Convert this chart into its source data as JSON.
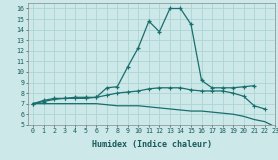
{
  "xlabel": "Humidex (Indice chaleur)",
  "ylabel": "",
  "bg_color": "#cce8e8",
  "grid_color": "#aed4d4",
  "line_color": "#1a6e6e",
  "xlim": [
    -0.5,
    23
  ],
  "ylim": [
    5,
    16.5
  ],
  "yticks": [
    5,
    6,
    7,
    8,
    9,
    10,
    11,
    12,
    13,
    14,
    15,
    16
  ],
  "xticks": [
    0,
    1,
    2,
    3,
    4,
    5,
    6,
    7,
    8,
    9,
    10,
    11,
    12,
    13,
    14,
    15,
    16,
    17,
    18,
    19,
    20,
    21,
    22,
    23
  ],
  "line1_x": [
    0,
    1,
    2,
    3,
    4,
    5,
    6,
    7,
    8,
    9,
    10,
    11,
    12,
    13,
    14,
    15,
    16,
    17,
    18,
    19,
    20,
    21
  ],
  "line1_y": [
    7.0,
    7.3,
    7.5,
    7.5,
    7.6,
    7.6,
    7.6,
    8.5,
    8.6,
    10.5,
    12.3,
    14.8,
    13.8,
    16.0,
    16.0,
    14.5,
    9.2,
    8.5,
    8.5,
    8.5,
    8.6,
    8.7
  ],
  "line2_x": [
    0,
    1,
    2,
    3,
    4,
    5,
    6,
    7,
    8,
    9,
    10,
    11,
    12,
    13,
    14,
    15,
    16,
    17,
    18,
    19,
    20,
    21,
    22
  ],
  "line2_y": [
    7.0,
    7.2,
    7.4,
    7.5,
    7.5,
    7.5,
    7.6,
    7.8,
    8.0,
    8.1,
    8.2,
    8.4,
    8.5,
    8.5,
    8.5,
    8.3,
    8.2,
    8.2,
    8.2,
    8.0,
    7.7,
    6.8,
    6.5
  ],
  "line3_x": [
    0,
    1,
    2,
    3,
    4,
    5,
    6,
    7,
    8,
    9,
    10,
    11,
    12,
    13,
    14,
    15,
    16,
    17,
    18,
    19,
    20,
    21,
    22,
    23
  ],
  "line3_y": [
    7.0,
    7.0,
    7.0,
    7.0,
    7.0,
    7.0,
    7.0,
    6.9,
    6.8,
    6.8,
    6.8,
    6.7,
    6.6,
    6.5,
    6.4,
    6.3,
    6.3,
    6.2,
    6.1,
    6.0,
    5.8,
    5.5,
    5.3,
    4.8
  ]
}
